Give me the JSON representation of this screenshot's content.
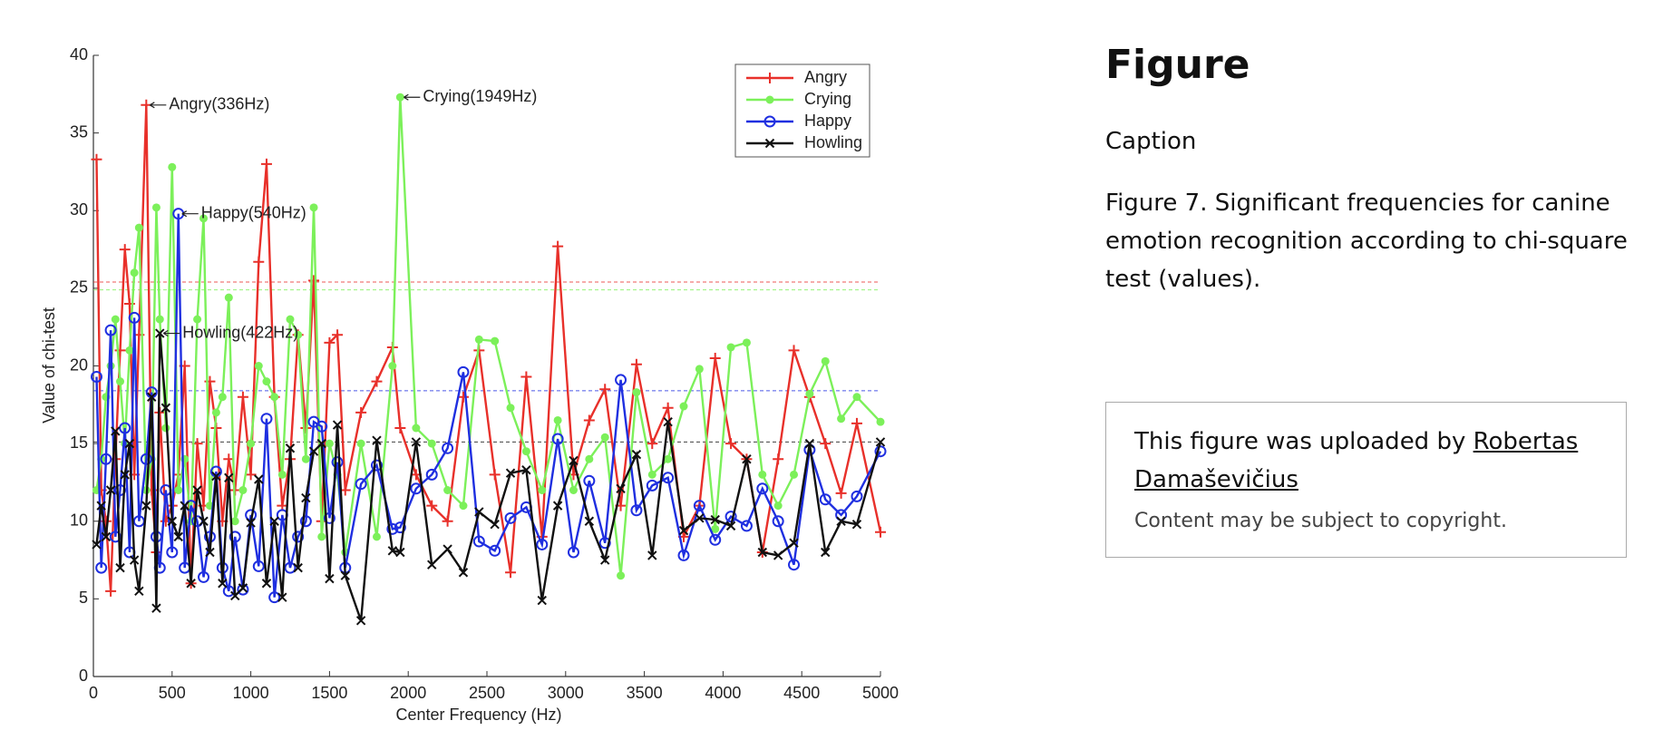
{
  "chart_data": {
    "type": "line",
    "xlabel": "Center Frequency (Hz)",
    "ylabel": "Value of chi-test",
    "xlim": [
      0,
      5000
    ],
    "ylim": [
      0,
      40
    ],
    "xticks": [
      0,
      500,
      1000,
      1500,
      2000,
      2500,
      3000,
      3500,
      4000,
      4500,
      5000
    ],
    "yticks": [
      0,
      5,
      10,
      15,
      20,
      25,
      30,
      35,
      40
    ],
    "legend": "upper right",
    "x": [
      20,
      50,
      80,
      110,
      140,
      170,
      200,
      230,
      260,
      290,
      336,
      370,
      400,
      422,
      460,
      500,
      540,
      580,
      620,
      660,
      700,
      740,
      780,
      820,
      860,
      900,
      950,
      1000,
      1050,
      1100,
      1150,
      1200,
      1250,
      1300,
      1350,
      1400,
      1450,
      1500,
      1550,
      1600,
      1700,
      1800,
      1900,
      1949,
      2050,
      2150,
      2250,
      2350,
      2450,
      2550,
      2650,
      2750,
      2850,
      2950,
      3050,
      3150,
      3250,
      3350,
      3450,
      3550,
      3650,
      3750,
      3850,
      3950,
      4050,
      4150,
      4250,
      4350,
      4450,
      4550,
      4650,
      4750,
      4850,
      5000
    ],
    "series": [
      {
        "name": "Angry",
        "color": "#e8302a",
        "marker": "plus",
        "values": [
          33.3,
          12,
          10,
          5.5,
          14,
          21,
          27.5,
          24,
          13,
          22,
          36.8,
          12,
          8,
          17,
          10,
          11,
          13,
          20,
          6,
          15,
          11,
          19,
          16,
          10,
          14,
          12,
          18,
          13,
          26.7,
          33,
          18,
          11,
          14,
          22,
          16,
          25.5,
          10,
          21.5,
          22,
          12,
          17,
          19,
          21.2,
          16,
          13,
          11,
          10,
          18,
          21,
          13,
          6.7,
          19.3,
          9,
          27.7,
          13,
          16.5,
          18.5,
          11,
          20.1,
          15,
          17.3,
          9,
          11,
          20.5,
          15,
          14,
          8,
          14,
          21,
          18,
          15,
          11.8,
          16.3,
          9.3
        ]
      },
      {
        "name": "Crying",
        "color": "#7cf05a",
        "marker": "dot",
        "values": [
          12,
          14,
          18,
          20,
          23,
          19,
          15,
          21,
          26,
          28.9,
          12,
          14,
          30.2,
          23,
          16,
          32.8,
          12,
          14,
          10,
          23,
          29.5,
          11,
          17,
          18,
          24.4,
          10,
          12,
          15,
          20,
          19,
          18,
          13,
          23,
          22,
          14,
          30.2,
          9,
          15,
          13,
          8,
          15,
          9,
          20,
          37.3,
          16,
          15,
          12,
          11,
          21.7,
          21.6,
          17.3,
          14.5,
          12,
          16.5,
          12,
          14,
          15.4,
          6.5,
          18.3,
          13,
          14,
          17.4,
          19.8,
          9.5,
          21.2,
          21.5,
          13,
          11,
          13,
          18.2,
          20.3,
          16.6,
          18,
          16.4
        ]
      },
      {
        "name": "Happy",
        "color": "#1f2fe0",
        "marker": "circle",
        "values": [
          19.3,
          7,
          14,
          22.3,
          9,
          12,
          16,
          8,
          23.1,
          10,
          14,
          18.3,
          9,
          7,
          12,
          8,
          29.8,
          7,
          11,
          10,
          6.4,
          9,
          13.2,
          7,
          5.5,
          9,
          5.6,
          10.4,
          7.1,
          16.6,
          5.1,
          10.4,
          7,
          9,
          10,
          16.4,
          16.1,
          10.2,
          13.8,
          7,
          12.4,
          13.6,
          9.5,
          9.6,
          12.1,
          13,
          14.7,
          19.6,
          8.7,
          8.1,
          10.2,
          10.9,
          8.5,
          15.3,
          8,
          12.6,
          8.6,
          19.1,
          10.7,
          12.3,
          12.8,
          7.8,
          11,
          8.8,
          10.3,
          9.7,
          12.1,
          10,
          7.2,
          14.6,
          11.4,
          10.4,
          11.6,
          14.5
        ]
      },
      {
        "name": "Howling",
        "color": "#111111",
        "marker": "cross",
        "values": [
          8.5,
          11,
          9,
          12,
          15.8,
          7,
          13,
          15,
          7.5,
          5.5,
          11,
          18,
          4.4,
          22.1,
          17.3,
          10,
          9,
          11,
          6,
          12,
          10,
          8,
          12.9,
          6,
          12.8,
          5.2,
          5.7,
          9.9,
          12.7,
          6,
          10,
          5.1,
          14.7,
          7,
          11.5,
          14.5,
          15,
          6.3,
          16.2,
          6.5,
          3.6,
          15.2,
          8.1,
          8,
          15.1,
          7.2,
          8.2,
          6.7,
          10.6,
          9.8,
          13.1,
          13.3,
          4.9,
          11,
          13.9,
          10,
          7.5,
          12.1,
          14.3,
          7.8,
          16.4,
          9.4,
          10.2,
          10.1,
          9.7,
          14,
          8,
          7.8,
          8.6,
          15,
          8,
          10,
          9.8,
          15.1
        ]
      }
    ],
    "reference_lines": [
      {
        "value": 25.4,
        "color": "#e8302a"
      },
      {
        "value": 24.9,
        "color": "#7cf05a"
      },
      {
        "value": 18.4,
        "color": "#1f2fe0"
      },
      {
        "value": 15.1,
        "color": "#111111"
      }
    ],
    "annotations": [
      {
        "text": "Angry(336Hz)",
        "x": 336,
        "y": 36.8
      },
      {
        "text": "Crying(1949Hz)",
        "x": 1949,
        "y": 37.3
      },
      {
        "text": "Happy(540Hz)",
        "x": 540,
        "y": 29.8
      },
      {
        "text": "Howling(422Hz)",
        "x": 422,
        "y": 22.1
      }
    ]
  },
  "panel": {
    "heading": "Figure",
    "caption_label": "Caption",
    "caption": "Figure 7. Significant frequencies for canine emotion recognition according to chi-square test (values).",
    "upload_text": "This figure was uploaded by",
    "uploader": "Robertas Damaševičius",
    "copyright": "Content may be subject to copyright."
  }
}
